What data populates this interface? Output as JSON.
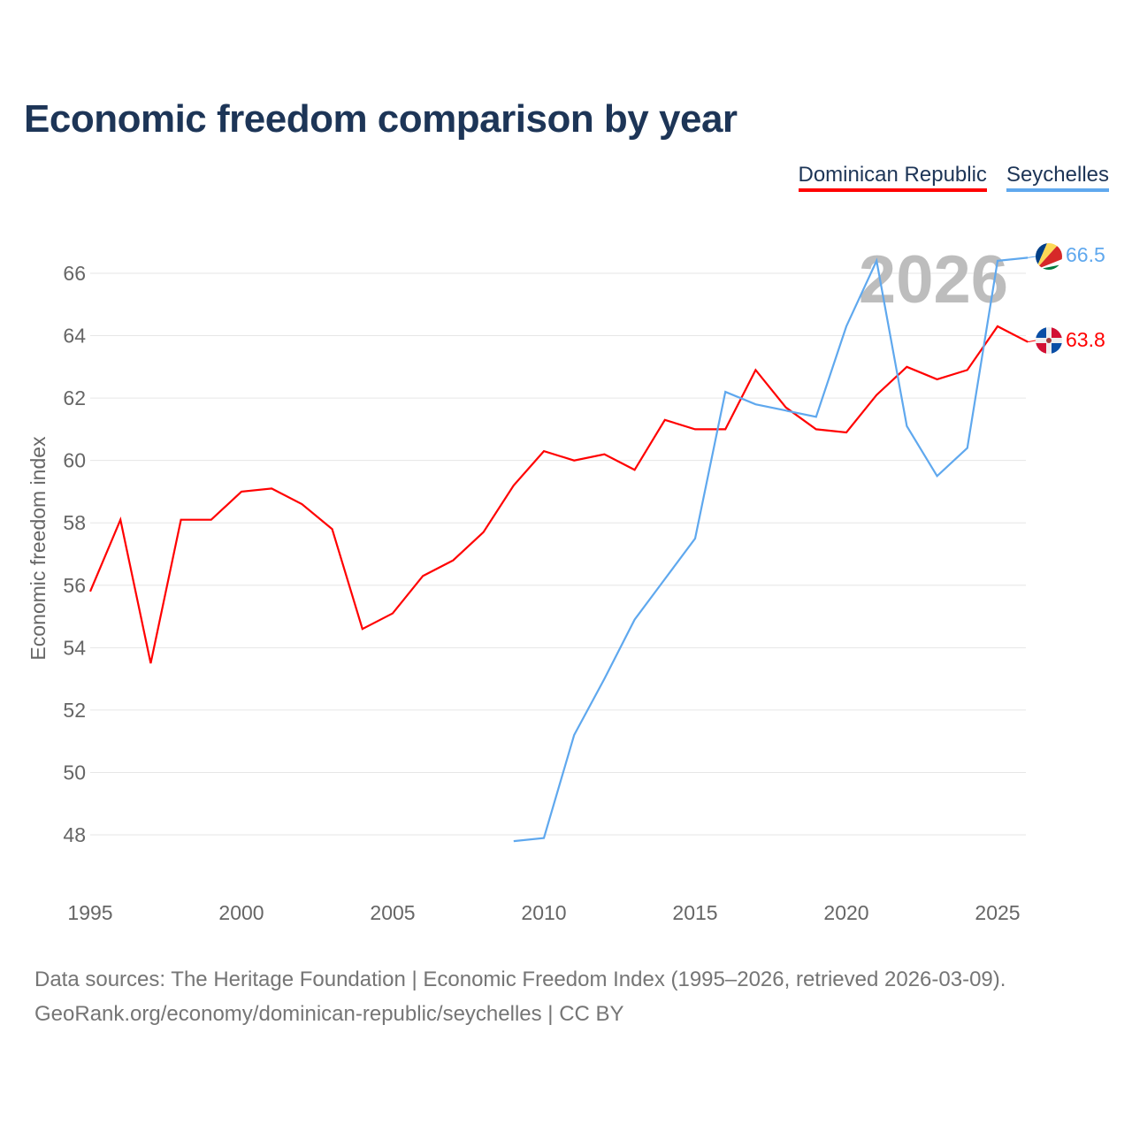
{
  "title": "Economic freedom comparison by year",
  "legend": [
    {
      "name": "Dominican Republic",
      "color": "#ff0000"
    },
    {
      "name": "Seychelles",
      "color": "#5fa8ee"
    }
  ],
  "watermark_year": "2026",
  "end_labels": {
    "seychelles": "66.5",
    "dominican": "63.8"
  },
  "source_lines": [
    "Data sources: The Heritage Foundation | Economic Freedom Index (1995–2026, retrieved 2026-03-09).",
    "GeoRank.org/economy/dominican-republic/seychelles | CC BY"
  ],
  "chart_data": {
    "type": "line",
    "title": "Economic freedom comparison by year",
    "xlabel": "",
    "ylabel": "Economic freedom index",
    "xlim": [
      1995,
      2026
    ],
    "ylim": [
      46.5,
      67.5
    ],
    "x_ticks": [
      1995,
      2000,
      2005,
      2010,
      2015,
      2020,
      2025
    ],
    "y_ticks": [
      48,
      50,
      52,
      54,
      56,
      58,
      60,
      62,
      64,
      66
    ],
    "grid": true,
    "legend_position": "top-right",
    "series": [
      {
        "name": "Dominican Republic",
        "color": "#ff0000",
        "x": [
          1995,
          1996,
          1997,
          1998,
          1999,
          2000,
          2001,
          2002,
          2003,
          2004,
          2005,
          2006,
          2007,
          2008,
          2009,
          2010,
          2011,
          2012,
          2013,
          2014,
          2015,
          2016,
          2017,
          2018,
          2019,
          2020,
          2021,
          2022,
          2023,
          2024,
          2025,
          2026
        ],
        "values": [
          55.8,
          58.1,
          53.5,
          58.1,
          58.1,
          59.0,
          59.1,
          58.6,
          57.8,
          54.6,
          55.1,
          56.3,
          56.8,
          57.7,
          59.2,
          60.3,
          60.0,
          60.2,
          59.7,
          61.3,
          61.0,
          61.0,
          62.9,
          61.7,
          61.0,
          60.9,
          62.1,
          63.0,
          62.6,
          62.9,
          64.3,
          63.8
        ]
      },
      {
        "name": "Seychelles",
        "color": "#5fa8ee",
        "x": [
          2009,
          2010,
          2011,
          2012,
          2013,
          2014,
          2015,
          2016,
          2017,
          2018,
          2019,
          2020,
          2021,
          2022,
          2023,
          2024,
          2025,
          2026
        ],
        "values": [
          47.8,
          47.9,
          51.2,
          53.0,
          54.9,
          56.2,
          57.5,
          62.2,
          61.8,
          61.6,
          61.4,
          64.3,
          66.4,
          61.1,
          59.5,
          60.4,
          66.4,
          66.5
        ]
      }
    ]
  }
}
